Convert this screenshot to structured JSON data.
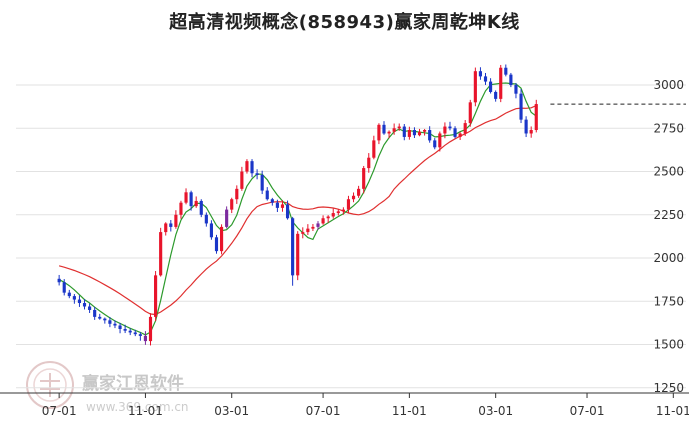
{
  "chart_data": {
    "type": "candlestick",
    "title": "超高清视频概念(858943)赢家周乾坤K线",
    "y_ticks": [
      "3000",
      "2750",
      "2500",
      "2250",
      "2000",
      "1750",
      "1500",
      "1250"
    ],
    "y_tick_values": [
      3000,
      2750,
      2500,
      2250,
      2000,
      1750,
      1500,
      1250
    ],
    "ylim": [
      1220,
      3110
    ],
    "x_ticks": [
      "07-01",
      "11-01",
      "03-01",
      "07-01",
      "11-01",
      "03-01",
      "07-01",
      "11-01"
    ],
    "x_tick_weeks": [
      0,
      17,
      34,
      52,
      69,
      86,
      104,
      121
    ],
    "x_range_weeks": [
      -8.5,
      123.5
    ],
    "reference_level": 2890,
    "colors": {
      "up": "#e8142b",
      "down": "#1a36c8",
      "special": "#7b2a9e",
      "ma_fast": "#2c9a2c",
      "ma_slow": "#e03030",
      "grid": "#e2e2e2"
    },
    "watermark": {
      "name": "赢家江恩软件",
      "url": "www.369.com.cn"
    },
    "weekly_close": [
      1860,
      1800,
      1780,
      1760,
      1740,
      1720,
      1700,
      1660,
      1650,
      1640,
      1620,
      1610,
      1590,
      1580,
      1570,
      1560,
      1550,
      1520,
      1660,
      1900,
      2150,
      2200,
      2180,
      2250,
      2320,
      2380,
      2300,
      2330,
      2250,
      2200,
      2120,
      2040,
      2180,
      2280,
      2340,
      2400,
      2500,
      2560,
      2490,
      2480,
      2390,
      2340,
      2320,
      2290,
      2310,
      2230,
      1900,
      2140,
      2150,
      2170,
      2180,
      2200,
      2230,
      2240,
      2260,
      2270,
      2280,
      2340,
      2360,
      2400,
      2520,
      2580,
      2680,
      2770,
      2720,
      2730,
      2750,
      2760,
      2700,
      2740,
      2710,
      2730,
      2740,
      2680,
      2640,
      2720,
      2760,
      2750,
      2700,
      2720,
      2780,
      2900,
      3080,
      3050,
      3020,
      2960,
      2920,
      3100,
      3060,
      3000,
      2950,
      2800,
      2720,
      2740,
      2890
    ]
  }
}
